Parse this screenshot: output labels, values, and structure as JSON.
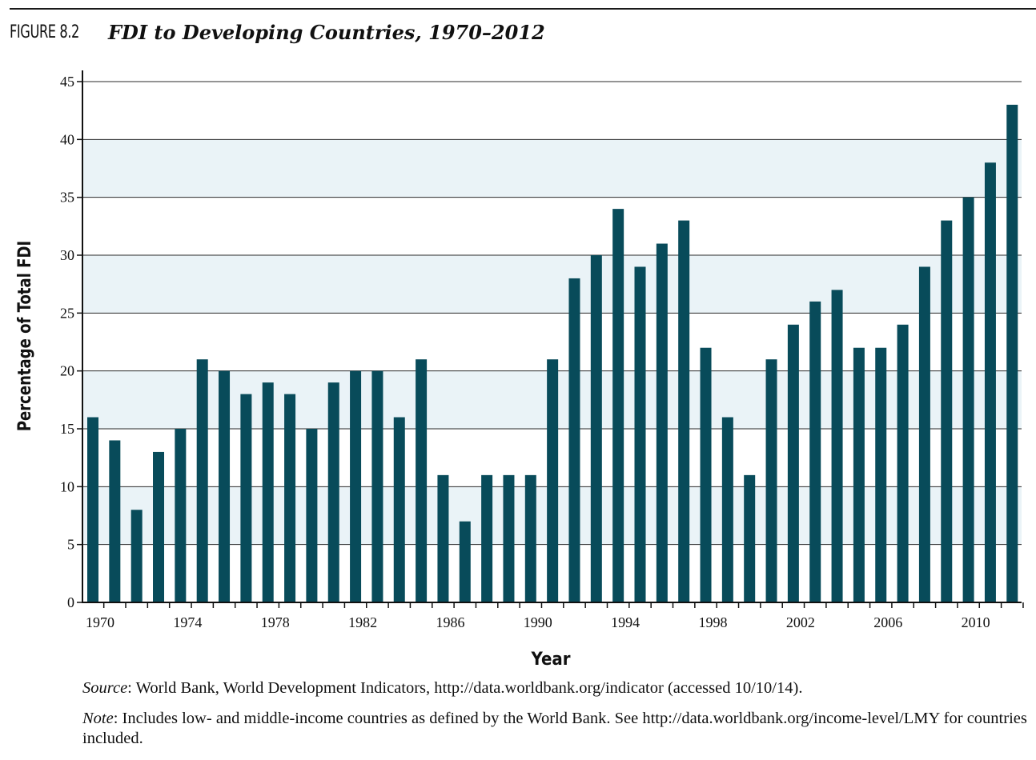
{
  "figure": {
    "label": "FIGURE 8.2",
    "title": "FDI to Developing Countries, 1970–2012"
  },
  "colors": {
    "bar": "#084b5a",
    "band": "#eaf3f7",
    "grid": "#2a2a2a"
  },
  "chart_data": {
    "type": "bar",
    "title": "FDI to Developing Countries, 1970–2012",
    "xlabel": "Year",
    "ylabel": "Percentage of Total FDI",
    "ylim": [
      0,
      45
    ],
    "yticks": [
      0,
      5,
      10,
      15,
      20,
      25,
      30,
      35,
      40,
      45
    ],
    "xtick_labels": [
      "1970",
      "1974",
      "1978",
      "1982",
      "1986",
      "1990",
      "1994",
      "1998",
      "2002",
      "2006",
      "2010"
    ],
    "categories": [
      1970,
      1971,
      1972,
      1973,
      1974,
      1975,
      1976,
      1977,
      1978,
      1979,
      1980,
      1981,
      1982,
      1983,
      1984,
      1985,
      1986,
      1987,
      1988,
      1989,
      1990,
      1991,
      1992,
      1993,
      1994,
      1995,
      1996,
      1997,
      1998,
      1999,
      2000,
      2001,
      2002,
      2003,
      2004,
      2005,
      2006,
      2007,
      2008,
      2009,
      2010,
      2011,
      2012
    ],
    "values": [
      16,
      14,
      8,
      13,
      15,
      21,
      20,
      18,
      19,
      18,
      15,
      19,
      20,
      20,
      16,
      21,
      11,
      7,
      11,
      11,
      11,
      21,
      28,
      30,
      34,
      29,
      31,
      33,
      22,
      16,
      11,
      21,
      24,
      26,
      27,
      22,
      22,
      24,
      29,
      33,
      35,
      38,
      43
    ],
    "grid": true,
    "legend": "none"
  },
  "footnotes": {
    "source_label": "Source",
    "source_text": ": World Bank, World Development Indicators, http://data.worldbank.org/indicator (accessed 10/10/14).",
    "note_label": "Note",
    "note_text": ": Includes low- and middle-income countries as defined by the World Bank. See http://data.worldbank.org/income-level/LMY for countries included."
  }
}
